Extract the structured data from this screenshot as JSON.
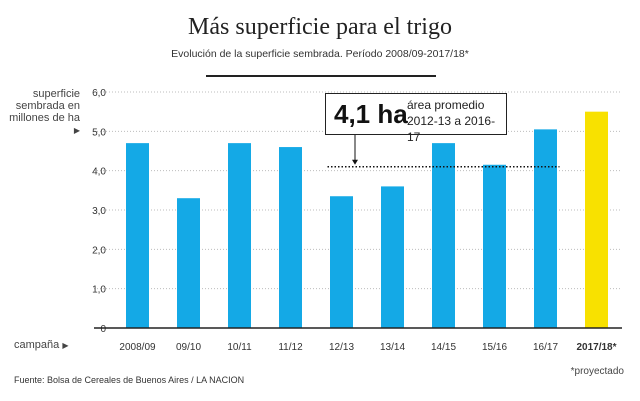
{
  "chart_data": {
    "type": "bar",
    "title": "Más superficie para el trigo",
    "subtitle": "Evolución de la superficie sembrada. Período 2008/09-2017/18*",
    "ylabel": "superficie sembrada en millones de ha",
    "xlabel": "campaña",
    "ylim": [
      0,
      6
    ],
    "yticks": [
      "0",
      "1,0",
      "2,0",
      "3,0",
      "4,0",
      "5,0",
      "6,0"
    ],
    "categories": [
      "2008/09",
      "09/10",
      "10/11",
      "11/12",
      "12/13",
      "13/14",
      "14/15",
      "15/16",
      "16/17",
      "2017/18*"
    ],
    "values": [
      4.7,
      3.3,
      4.7,
      4.6,
      3.35,
      3.6,
      4.7,
      4.15,
      5.05,
      5.5
    ],
    "colors": {
      "bar": "#14a9e6",
      "projected": "#f8e100",
      "axis": "#222222",
      "grid": "#bdbdbd"
    },
    "projected_index": 9,
    "average": {
      "value": 4.1,
      "value_label": "4,1 ha",
      "label_line1": "área promedio",
      "label_line2": "2012-13 a 2016-17",
      "from_index": 4,
      "to_index": 8
    },
    "source": "Fuente: Bolsa de Cereales de Buenos Aires / LA NACION",
    "note": "*proyectado"
  }
}
